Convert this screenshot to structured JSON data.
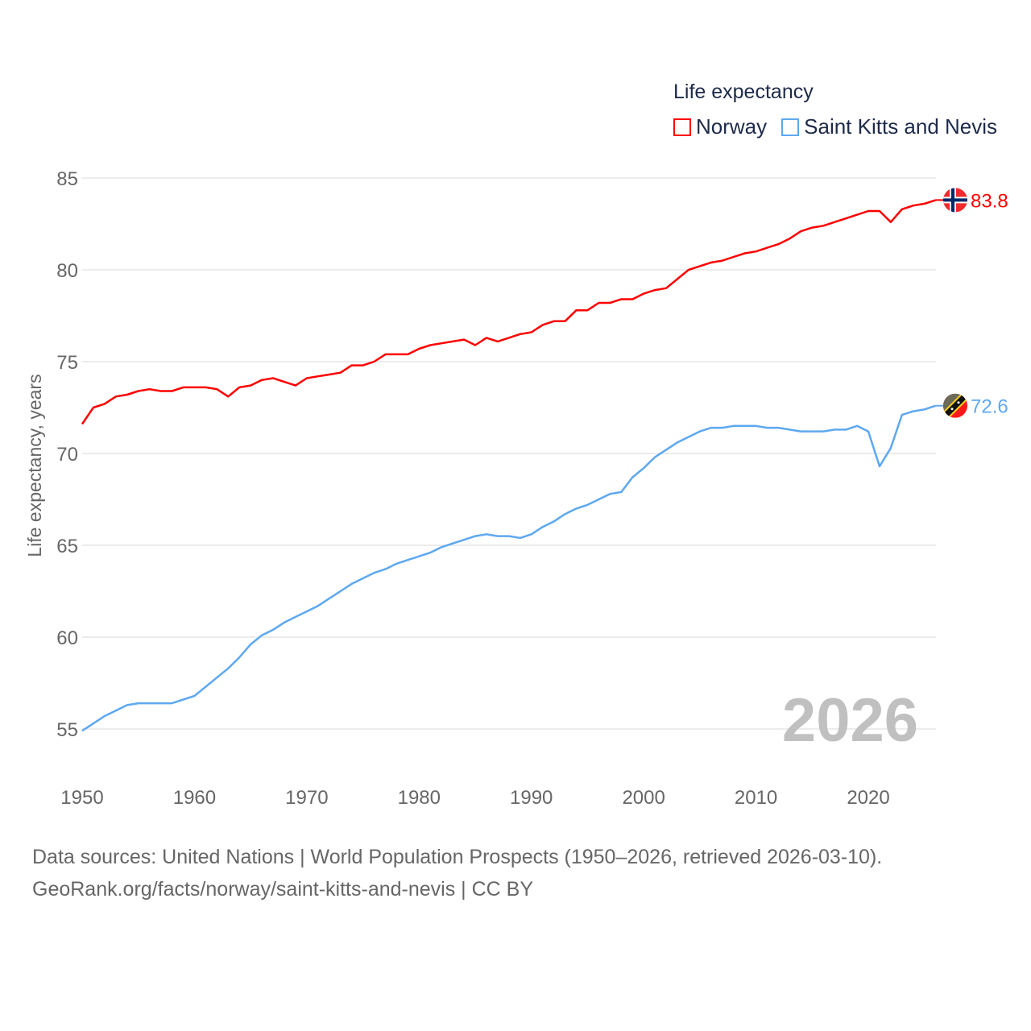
{
  "chart_data": {
    "type": "line",
    "legend_title": "Life expectancy",
    "legend_placement": "top-right",
    "ylabel": "Life expectancy, years",
    "xlabel": "",
    "ylim": [
      52.5,
      86
    ],
    "xlim": [
      1950,
      2026
    ],
    "yticks": [
      "55",
      "60",
      "65",
      "70",
      "75",
      "80",
      "85"
    ],
    "xticks": [
      "1950",
      "1960",
      "1970",
      "1980",
      "1990",
      "2000",
      "2010",
      "2020"
    ],
    "grid": true,
    "year_watermark": "2026",
    "x_start": 1950,
    "series": [
      {
        "name": "Norway",
        "color": "#ff0000",
        "end_label": "83.8",
        "flag": "norway-flag-icon",
        "values": [
          71.6,
          72.5,
          72.7,
          73.1,
          73.2,
          73.4,
          73.5,
          73.4,
          73.4,
          73.6,
          73.6,
          73.6,
          73.5,
          73.1,
          73.6,
          73.7,
          74.0,
          74.1,
          73.9,
          73.7,
          74.1,
          74.2,
          74.3,
          74.4,
          74.8,
          74.8,
          75.0,
          75.4,
          75.4,
          75.4,
          75.7,
          75.9,
          76.0,
          76.1,
          76.2,
          75.9,
          76.3,
          76.1,
          76.3,
          76.5,
          76.6,
          77.0,
          77.2,
          77.2,
          77.8,
          77.8,
          78.2,
          78.2,
          78.4,
          78.4,
          78.7,
          78.9,
          79.0,
          79.5,
          80.0,
          80.2,
          80.4,
          80.5,
          80.7,
          80.9,
          81.0,
          81.2,
          81.4,
          81.7,
          82.1,
          82.3,
          82.4,
          82.6,
          82.8,
          83.0,
          83.2,
          83.2,
          82.6,
          83.3,
          83.5,
          83.6,
          83.8
        ]
      },
      {
        "name": "Saint Kitts and Nevis",
        "color": "#5ea8f0",
        "end_label": "72.6",
        "flag": "saint-kitts-and-nevis-flag-icon",
        "values": [
          54.9,
          55.3,
          55.7,
          56.0,
          56.3,
          56.4,
          56.4,
          56.4,
          56.4,
          56.6,
          56.8,
          57.3,
          57.8,
          58.3,
          58.9,
          59.6,
          60.1,
          60.4,
          60.8,
          61.1,
          61.4,
          61.7,
          62.1,
          62.5,
          62.9,
          63.2,
          63.5,
          63.7,
          64.0,
          64.2,
          64.4,
          64.6,
          64.9,
          65.1,
          65.3,
          65.5,
          65.6,
          65.5,
          65.5,
          65.4,
          65.6,
          66.0,
          66.3,
          66.7,
          67.0,
          67.2,
          67.5,
          67.8,
          67.9,
          68.7,
          69.2,
          69.8,
          70.2,
          70.6,
          70.9,
          71.2,
          71.4,
          71.4,
          71.5,
          71.5,
          71.5,
          71.4,
          71.4,
          71.3,
          71.2,
          71.2,
          71.2,
          71.3,
          71.3,
          71.5,
          71.2,
          69.3,
          70.3,
          72.1,
          72.3,
          72.4,
          72.6
        ]
      }
    ]
  },
  "footer": {
    "sources": "Data sources: United Nations | World Population Prospects (1950–2026, retrieved 2026-03-10).",
    "link": "GeoRank.org/facts/norway/saint-kitts-and-nevis | CC BY"
  }
}
